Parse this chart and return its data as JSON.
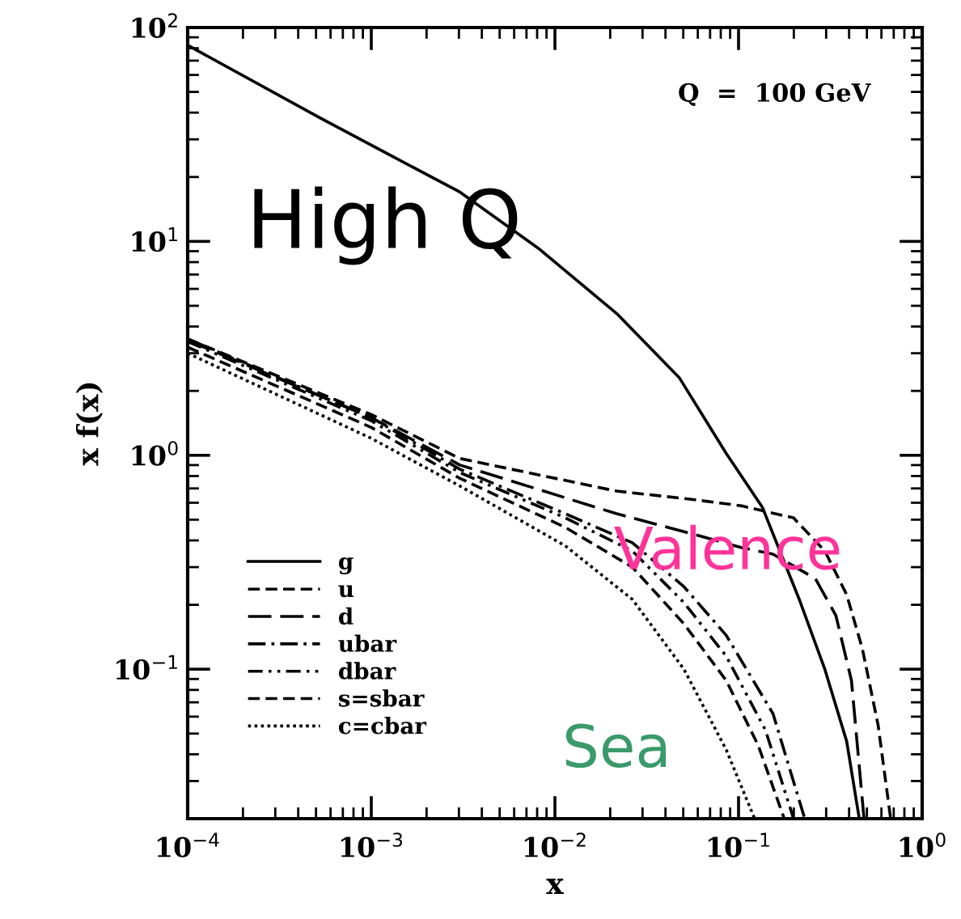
{
  "chart_data": {
    "type": "line",
    "xlabel": "x",
    "ylabel": "x f(x)",
    "log": "xy",
    "grid": false,
    "legend": "bottom left",
    "marker": "none",
    "xlim": [
      0.0001,
      1
    ],
    "ylim": [
      0.02,
      100
    ],
    "xticks": [
      {
        "value": 0.0001,
        "label": "10$^{−4}$"
      },
      {
        "value": 0.001,
        "label": "10$^{−3}$"
      },
      {
        "value": 0.01,
        "label": "10$^{−2}$"
      },
      {
        "value": 0.1,
        "label": "10$^{−1}$"
      },
      {
        "value": 1,
        "label": "10$^{0}$"
      }
    ],
    "yticks": [
      {
        "value": 0.1,
        "label": "10$^{−1}$"
      },
      {
        "value": 1,
        "label": "10$^{0}$"
      },
      {
        "value": 10,
        "label": "10$^{1}$"
      },
      {
        "value": 100,
        "label": "10$^{2}$"
      }
    ],
    "annotations": [
      "Q  =  100 GeV",
      "High Q",
      "Valence",
      "Sea"
    ],
    "series": [
      {
        "name": "g",
        "color": "#000000",
        "line_style": "solid",
        "x": [
          0.0001,
          0.00052,
          0.0013,
          0.00304,
          0.0081,
          0.0217,
          0.0475,
          0.0857,
          0.135,
          0.215,
          0.295,
          0.388,
          0.454
        ],
        "values": [
          82.6,
          38,
          25,
          17,
          9.3,
          4.6,
          2.31,
          1.02,
          0.57,
          0.21,
          0.1,
          0.046,
          0.0201
        ]
      },
      {
        "name": "u",
        "color": "#000000",
        "line_style": "dashed",
        "x": [
          0.0001,
          0.001,
          0.00304,
          0.0217,
          0.0578,
          0.104,
          0.199,
          0.295,
          0.388,
          0.472,
          0.575,
          0.673
        ],
        "values": [
          3.5,
          1.55,
          0.966,
          0.68,
          0.62,
          0.58,
          0.51,
          0.357,
          0.223,
          0.125,
          0.055,
          0.0201
        ]
      },
      {
        "name": "d",
        "color": "#000000",
        "line_style": "longdash",
        "x": [
          0.0001,
          0.001,
          0.00304,
          0.0217,
          0.0578,
          0.104,
          0.154,
          0.262,
          0.339,
          0.412,
          0.482
        ],
        "values": [
          3.45,
          1.5,
          0.9,
          0.533,
          0.426,
          0.37,
          0.345,
          0.265,
          0.178,
          0.0885,
          0.0201
        ]
      },
      {
        "name": "ubar",
        "color": "#000000",
        "line_style": "dashdot",
        "x": [
          0.0001,
          0.001,
          0.00304,
          0.0114,
          0.0264,
          0.0504,
          0.0857,
          0.154,
          0.229
        ],
        "values": [
          3.5,
          1.5,
          0.86,
          0.533,
          0.39,
          0.243,
          0.144,
          0.062,
          0.0201
        ]
      },
      {
        "name": "dbar",
        "color": "#000000",
        "line_style": "dashdotdot",
        "x": [
          0.0001,
          0.001,
          0.00304,
          0.0114,
          0.0264,
          0.0504,
          0.0857,
          0.14,
          0.199
        ],
        "values": [
          3.4,
          1.45,
          0.83,
          0.51,
          0.357,
          0.205,
          0.115,
          0.052,
          0.0201
        ]
      },
      {
        "name": "s=sbar",
        "color": "#000000",
        "line_style": "dashed",
        "x": [
          0.0001,
          0.001,
          0.00304,
          0.0114,
          0.0264,
          0.0504,
          0.0857,
          0.128,
          0.177
        ],
        "values": [
          3.2,
          1.35,
          0.78,
          0.46,
          0.3,
          0.163,
          0.0885,
          0.044,
          0.0201
        ]
      },
      {
        "name": "c=cbar",
        "color": "#000000",
        "line_style": "dotted",
        "x": [
          0.0001,
          0.001,
          0.00304,
          0.0114,
          0.0264,
          0.0504,
          0.0857,
          0.122
        ],
        "values": [
          3.0,
          1.2,
          0.718,
          0.377,
          0.212,
          0.1,
          0.042,
          0.0201
        ]
      }
    ]
  }
}
